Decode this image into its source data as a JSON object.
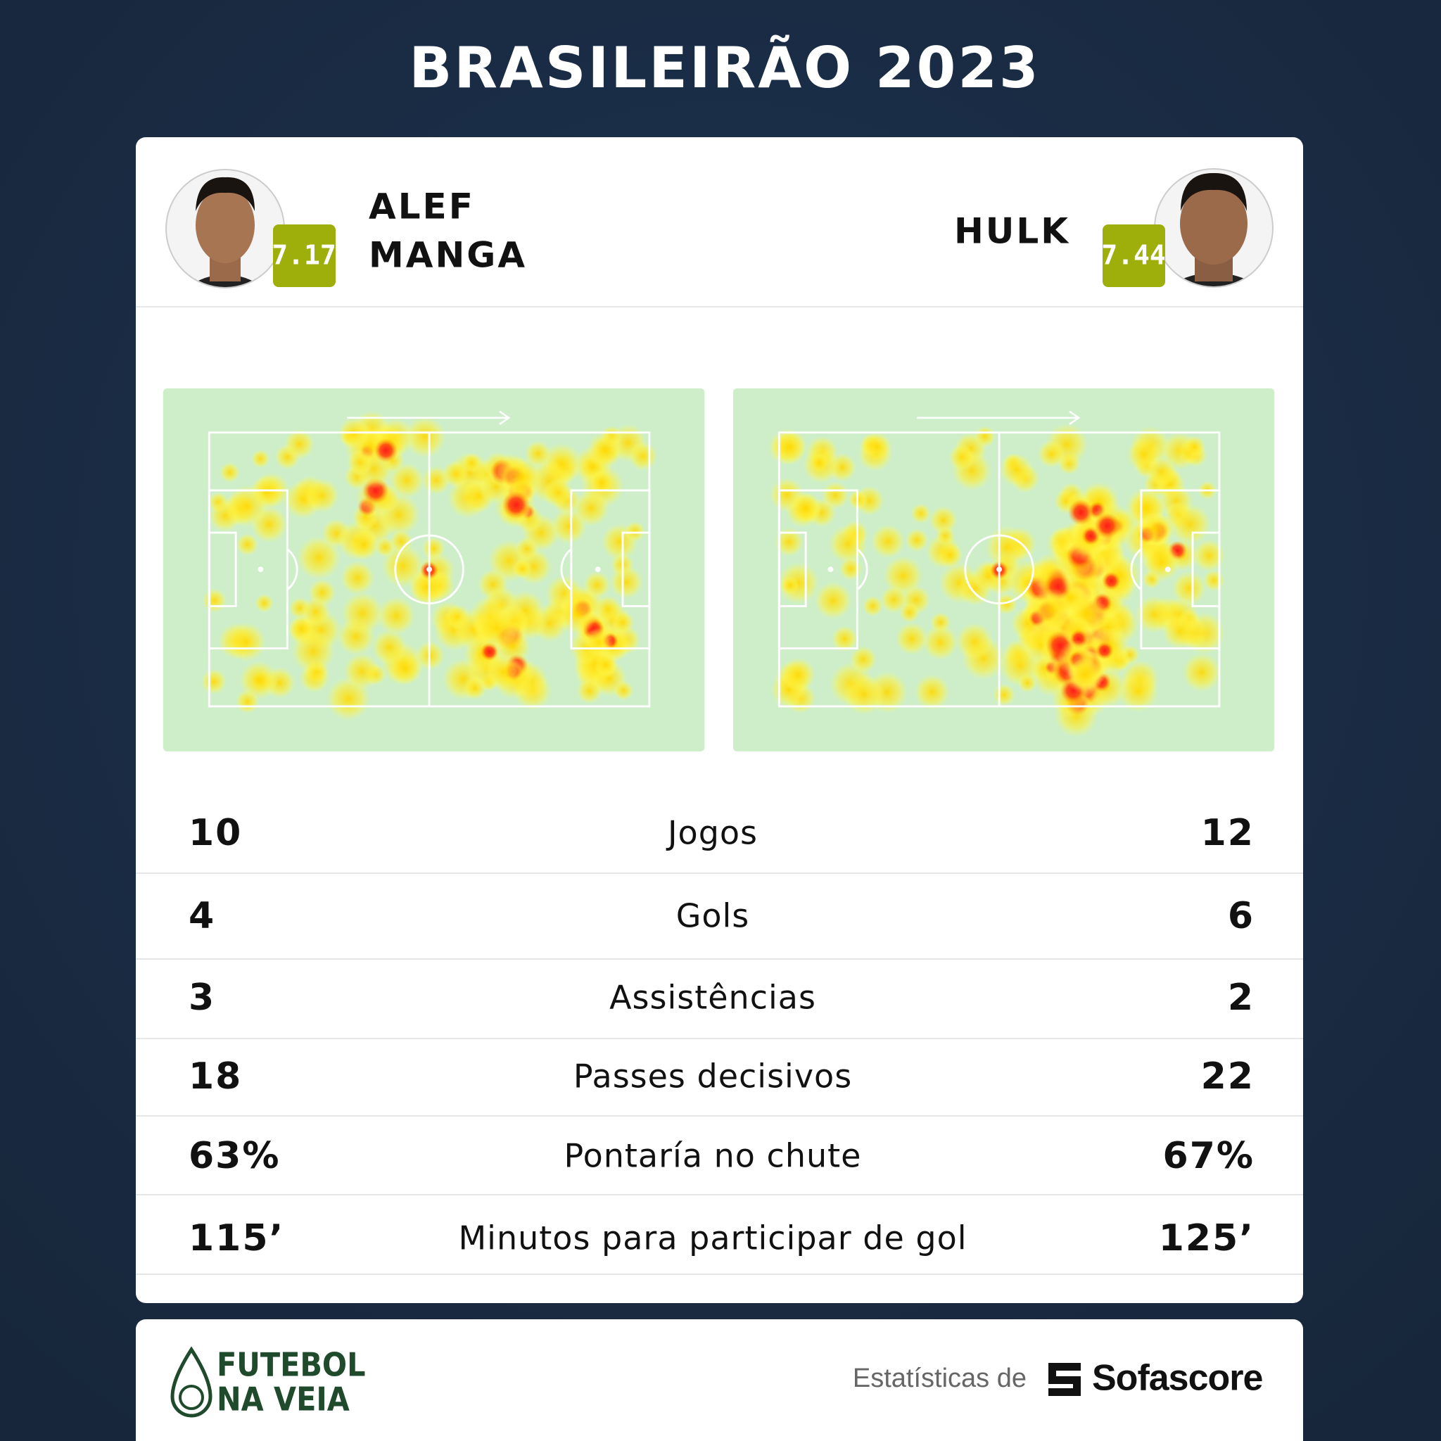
{
  "title": "BRASILEIRÃO 2023",
  "players": [
    {
      "name_lines": [
        "ALEF",
        "MANGA"
      ],
      "rating": "7.17"
    },
    {
      "name_lines": [
        "HULK"
      ],
      "rating": "7.44"
    }
  ],
  "stats": [
    {
      "left": "10",
      "label": "Jogos",
      "right": "12"
    },
    {
      "left": "4",
      "label": "Gols",
      "right": "6"
    },
    {
      "left": "3",
      "label": "Assistências",
      "right": "2"
    },
    {
      "left": "18",
      "label": "Passes decisivos",
      "right": "22"
    },
    {
      "left": "63%",
      "label": "Pontaría no chute",
      "right": "67%"
    },
    {
      "left": "115’",
      "label": "Minutos para participar de gol",
      "right": "125’"
    }
  ],
  "footer": {
    "brand_lines": [
      "FUTEBOL",
      "NA VEIA"
    ],
    "credit": "Estatísticas de",
    "source": "Sofascore"
  }
}
